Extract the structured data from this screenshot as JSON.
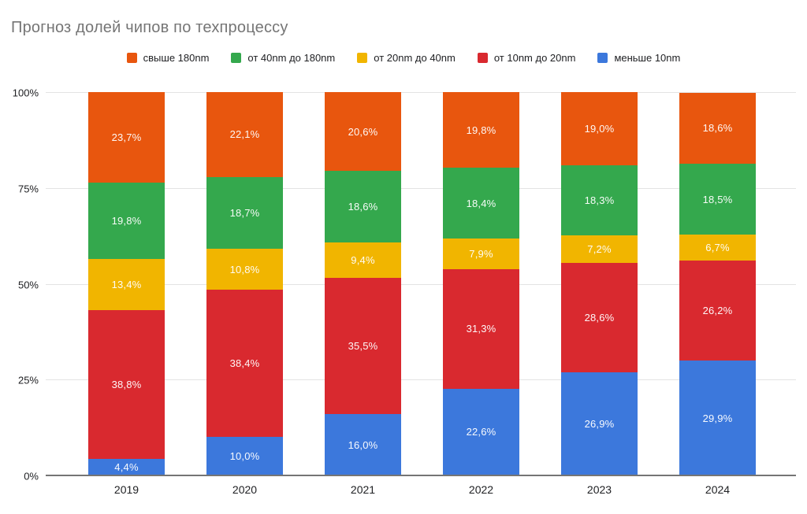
{
  "title": "Прогноз долей чипов по техпроцессу",
  "legend": {
    "items": [
      {
        "label": "свыше 180nm",
        "color": "#E8560E"
      },
      {
        "label": "от 40nm до 180nm",
        "color": "#34A84D"
      },
      {
        "label": "от 20nm до 40nm",
        "color": "#F1B500"
      },
      {
        "label": "от 10nm до 20nm",
        "color": "#D9292F"
      },
      {
        "label": "меньше 10nm",
        "color": "#3C78DC"
      }
    ]
  },
  "chart_data": {
    "type": "bar",
    "stacked": true,
    "stacked_100": true,
    "title": "Прогноз долей чипов по техпроцессу",
    "categories": [
      "2019",
      "2020",
      "2021",
      "2022",
      "2023",
      "2024"
    ],
    "series": [
      {
        "name": "меньше 10nm",
        "color": "#3C78DC",
        "values": [
          4.4,
          10.0,
          16.0,
          22.6,
          26.9,
          29.9
        ],
        "labels": [
          "4,4%",
          "10,0%",
          "16,0%",
          "22,6%",
          "26,9%",
          "29,9%"
        ]
      },
      {
        "name": "от 10nm до 20nm",
        "color": "#D9292F",
        "values": [
          38.8,
          38.4,
          35.5,
          31.3,
          28.6,
          26.2
        ],
        "labels": [
          "38,8%",
          "38,4%",
          "35,5%",
          "31,3%",
          "28,6%",
          "26,2%"
        ]
      },
      {
        "name": "от 20nm до 40nm",
        "color": "#F1B500",
        "values": [
          13.4,
          10.8,
          9.4,
          7.9,
          7.2,
          6.7
        ],
        "labels": [
          "13,4%",
          "10,8%",
          "9,4%",
          "7,9%",
          "7,2%",
          "6,7%"
        ]
      },
      {
        "name": "от 40nm до 180nm",
        "color": "#34A84D",
        "values": [
          19.8,
          18.7,
          18.6,
          18.4,
          18.3,
          18.5
        ],
        "labels": [
          "19,8%",
          "18,7%",
          "18,6%",
          "18,4%",
          "18,3%",
          "18,5%"
        ]
      },
      {
        "name": "свыше 180nm",
        "color": "#E8560E",
        "values": [
          23.7,
          22.1,
          20.6,
          19.8,
          19.0,
          18.6
        ],
        "labels": [
          "23,7%",
          "22,1%",
          "20,6%",
          "19,8%",
          "19,0%",
          "18,6%"
        ]
      }
    ],
    "y_ticks": [
      {
        "label": "0%",
        "value": 0
      },
      {
        "label": "25%",
        "value": 25
      },
      {
        "label": "50%",
        "value": 50
      },
      {
        "label": "75%",
        "value": 75
      },
      {
        "label": "100%",
        "value": 100
      }
    ],
    "ylim": [
      0,
      100
    ],
    "grid": true,
    "legend_position": "top"
  }
}
